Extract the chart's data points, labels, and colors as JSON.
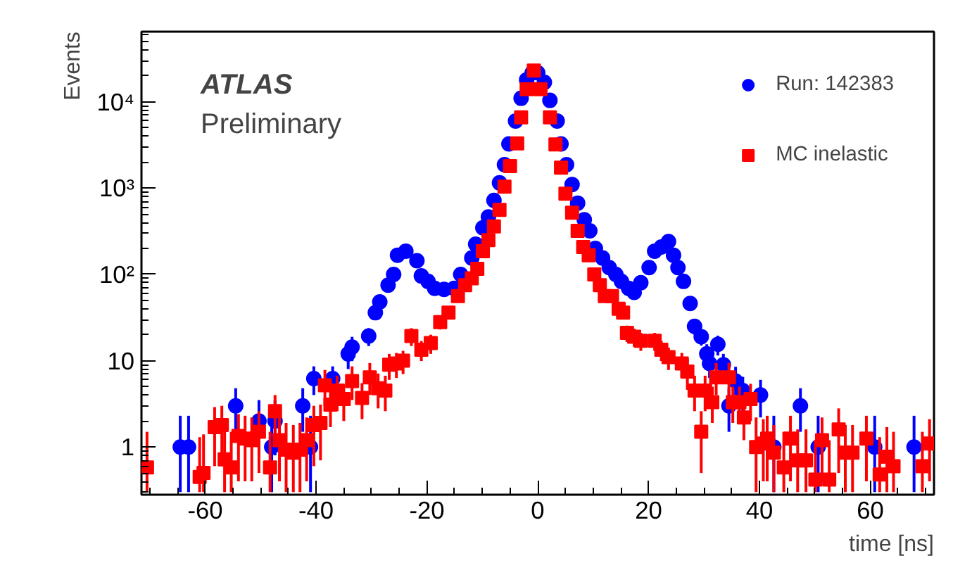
{
  "chart_data": {
    "type": "scatter",
    "xlabel": "time [ns]",
    "ylabel": "Events",
    "annotations": [
      "ATLAS",
      "Preliminary"
    ],
    "log": true,
    "legend": "top right",
    "grid": false,
    "xlim": [
      -71.5,
      71.5
    ],
    "xticks": [
      -60,
      -40,
      -20,
      0,
      20,
      40,
      60
    ],
    "ylim": [
      0.28,
      65000
    ],
    "yticks": [
      1,
      10,
      {
        "value": 100,
        "label": "10²"
      },
      {
        "value": 1000,
        "label": "10³"
      },
      {
        "value": 10000,
        "label": "10⁴"
      }
    ],
    "series": [
      {
        "name": "Run: 142383",
        "color": "#0000ff",
        "marker": "circle",
        "x": [
          -64.5,
          -63,
          -54.5,
          -50.3,
          -48,
          -47.4,
          -42.4,
          -41,
          -40.4,
          -37,
          -34.2,
          -33.5,
          -30.5,
          -29.3,
          -28.5,
          -27,
          -26,
          -25.3,
          -23.8,
          -21.8,
          -21,
          -19.8,
          -18.6,
          -16.9,
          -15.1,
          -13.9,
          -11.9,
          -11.2,
          -9.9,
          -8.9,
          -7.9,
          -6.9,
          -6,
          -5.2,
          -4,
          -3,
          -2,
          -1,
          0,
          1.2,
          2.2,
          3.5,
          4.2,
          5.2,
          6.2,
          7.2,
          8.4,
          9.4,
          10.4,
          11.7,
          12.9,
          14.1,
          15.1,
          16.4,
          17.4,
          18.6,
          20.1,
          21.1,
          22.3,
          23.6,
          24.5,
          25.3,
          26.3,
          27.5,
          28.3,
          29.5,
          30.5,
          31,
          32.5,
          33.5,
          34.5,
          35.7,
          37,
          40.2,
          42.6,
          47.4,
          50.6,
          60.8,
          67.9
        ],
        "values": [
          1,
          1,
          3,
          2,
          1,
          2,
          3,
          1,
          6.2,
          6.2,
          12,
          14.4,
          19.3,
          36,
          48,
          75,
          100,
          167,
          186,
          144,
          96,
          83,
          69,
          67,
          69,
          100,
          155,
          224,
          347,
          464,
          720,
          1150,
          1870,
          3250,
          6000,
          11000,
          18000,
          21700,
          21700,
          16800,
          10400,
          6000,
          3250,
          1870,
          1100,
          670,
          430,
          320,
          200,
          155,
          120,
          100,
          83,
          69,
          62,
          80,
          120,
          186,
          208,
          240,
          167,
          120,
          83,
          46,
          25,
          19,
          12,
          9.3,
          15.5,
          9,
          3,
          5.8,
          4.5,
          4,
          1,
          3,
          1,
          1,
          1
        ],
        "errors": [
          [
            0.3,
            2.3
          ],
          [
            0.3,
            2.3
          ],
          [
            1.5,
            4.8
          ],
          [
            0.8,
            3.5
          ],
          [
            0.3,
            2.3
          ],
          [
            0.8,
            3.5
          ],
          [
            1.5,
            4.8
          ],
          [
            0.3,
            2.3
          ],
          [
            4,
            8.6
          ],
          [
            4,
            8.6
          ],
          4,
          4.5,
          4.5,
          null,
          null,
          null,
          null,
          null,
          null,
          null,
          null,
          null,
          null,
          null,
          null,
          null,
          null,
          null,
          null,
          null,
          null,
          null,
          null,
          null,
          null,
          null,
          null,
          null,
          null,
          null,
          null,
          null,
          null,
          null,
          null,
          null,
          null,
          null,
          null,
          null,
          null,
          null,
          null,
          null,
          null,
          null,
          null,
          null,
          null,
          null,
          null,
          null,
          null,
          null,
          5,
          4,
          3.5,
          3,
          4,
          3,
          [
            1.5,
            4.8
          ],
          [
            4,
            8.5
          ],
          [
            2.5,
            6.5
          ],
          [
            2.2,
            6
          ],
          [
            0.3,
            2.3
          ],
          [
            1.5,
            4.8
          ],
          [
            0.3,
            2.3
          ],
          [
            0.3,
            2.3
          ],
          [
            0.3,
            2.3
          ]
        ]
      },
      {
        "name": "MC inelastic",
        "color": "#ff0000",
        "marker": "square",
        "x": [
          -70.5,
          -61,
          -60.3,
          -58.3,
          -57,
          -56.5,
          -55.3,
          -54,
          -52.8,
          -51.6,
          -50.3,
          -48.3,
          -47.4,
          -46.6,
          -45.4,
          -44.1,
          -42.9,
          -41.7,
          -40.4,
          -39.2,
          -38.4,
          -37.4,
          -36.2,
          -35,
          -33.5,
          -31.7,
          -30.3,
          -28.8,
          -27.5,
          -26.8,
          -25.5,
          -24.3,
          -22.8,
          -21,
          -19.3,
          -17.6,
          -16.1,
          -14.4,
          -13.1,
          -11.9,
          -10.9,
          -9.9,
          -8.9,
          -7.9,
          -6.9,
          -6,
          -5,
          -3.7,
          -3,
          -2,
          -0.7,
          0.5,
          2.2,
          3.2,
          4.2,
          5,
          6.2,
          7.2,
          8.2,
          9.2,
          10.2,
          11.2,
          12.1,
          13.4,
          14.6,
          15.4,
          16.1,
          17.4,
          18.6,
          21.1,
          22.3,
          23.6,
          26,
          27,
          28.3,
          29.5,
          30.2,
          31.5,
          32.2,
          34.5,
          35.2,
          36.4,
          37.2,
          38.4,
          39.4,
          40.7,
          41.4,
          42.6,
          44.4,
          45.6,
          46.9,
          48.4,
          50.1,
          51.3,
          52.6,
          54.3,
          55.5,
          56.8,
          59.3,
          61.7,
          63,
          64.2,
          69.4,
          70.7
        ],
        "values": [
          0.58,
          0.45,
          0.5,
          1.7,
          1.8,
          0.72,
          0.58,
          1.34,
          1.25,
          1.2,
          1.5,
          0.58,
          2.6,
          1.2,
          0.93,
          0.86,
          0.93,
          1.2,
          1.8,
          1.9,
          5.2,
          3.1,
          4.5,
          3.6,
          5.8,
          3.7,
          6.4,
          4.8,
          4.5,
          9,
          9.3,
          10,
          19.3,
          13.4,
          16,
          28,
          36,
          56,
          75,
          90,
          116,
          186,
          250,
          360,
          560,
          1040,
          1800,
          3300,
          6600,
          14000,
          23000,
          14000,
          6600,
          3200,
          1730,
          860,
          520,
          320,
          208,
          167,
          100,
          75,
          56,
          56,
          40,
          36,
          21,
          19,
          17,
          17,
          13.4,
          11,
          9.3,
          7.5,
          4.5,
          1.5,
          4.5,
          3.3,
          6.4,
          6.4,
          3.3,
          3.3,
          2.2,
          3.6,
          1,
          1.1,
          1.25,
          0.86,
          0.58,
          1.25,
          0.7,
          0.7,
          0.42,
          1.2,
          0.42,
          1.6,
          0.86,
          0.86,
          1.25,
          0.48,
          0.77,
          0.6,
          0.6,
          1.1
        ],
        "errors": [
          [
            0.3,
            1.5
          ],
          [
            0.3,
            1.3
          ],
          [
            0.3,
            1.4
          ],
          [
            0.6,
            2.9
          ],
          [
            0.6,
            3
          ],
          [
            0.3,
            1.7
          ],
          [
            0.3,
            1.5
          ],
          [
            0.4,
            2.4
          ],
          [
            0.4,
            2.3
          ],
          [
            0.4,
            2.2
          ],
          [
            0.5,
            2.6
          ],
          [
            0.3,
            1.5
          ],
          [
            1,
            4
          ],
          [
            0.4,
            2.2
          ],
          [
            0.3,
            1.9
          ],
          [
            0.3,
            1.8
          ],
          [
            0.3,
            1.9
          ],
          [
            0.4,
            2.2
          ],
          [
            0.6,
            3
          ],
          [
            0.7,
            3.1
          ],
          [
            3,
            7.8
          ],
          [
            1.7,
            4.8
          ],
          [
            2.6,
            6.7
          ],
          [
            2,
            5.4
          ],
          [
            3.5,
            8.6
          ],
          [
            2.1,
            5.5
          ],
          [
            4,
            9.4
          ],
          [
            2.8,
            7.1
          ],
          [
            2.6,
            6.7
          ],
          3,
          3,
          3,
          4.5,
          3.5,
          4,
          5,
          6,
          null,
          null,
          null,
          null,
          null,
          null,
          null,
          null,
          null,
          null,
          null,
          null,
          null,
          null,
          null,
          null,
          null,
          null,
          null,
          null,
          null,
          null,
          null,
          null,
          null,
          null,
          null,
          null,
          6,
          4.5,
          4.5,
          4,
          4,
          3.5,
          3.2,
          3,
          [
            4.6,
            10.5
          ],
          [
            2.6,
            6.7
          ],
          [
            0.5,
            2.6
          ],
          [
            2.6,
            6.7
          ],
          [
            1.9,
            5
          ],
          [
            4,
            9.4
          ],
          [
            4,
            9.4
          ],
          [
            1.9,
            5
          ],
          [
            1.9,
            5
          ],
          [
            1.2,
            3.6
          ],
          [
            2,
            5.4
          ],
          [
            0.3,
            2.2
          ],
          [
            0.4,
            2.1
          ],
          [
            0.4,
            2.3
          ],
          [
            0.3,
            1.8
          ],
          [
            0.3,
            1.5
          ],
          [
            0.4,
            2.3
          ],
          [
            0.3,
            1.6
          ],
          [
            0.3,
            1.6
          ],
          [
            0.3,
            1.2
          ],
          [
            0.4,
            2.2
          ],
          [
            0.3,
            1.2
          ],
          [
            0.5,
            2.8
          ],
          [
            0.3,
            1.8
          ],
          [
            0.3,
            1.8
          ],
          [
            0.4,
            2.3
          ],
          [
            0.3,
            1.3
          ],
          [
            0.3,
            1.7
          ],
          [
            0.3,
            1.5
          ],
          [
            0.3,
            1.5
          ],
          [
            0.4,
            2.1
          ]
        ]
      }
    ]
  }
}
